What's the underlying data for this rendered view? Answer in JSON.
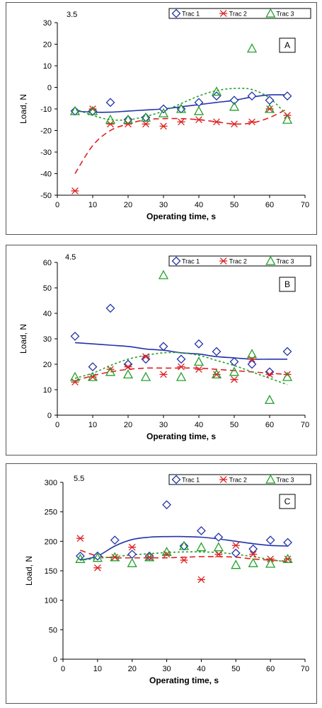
{
  "x_values": [
    5,
    10,
    15,
    20,
    25,
    30,
    35,
    40,
    45,
    50,
    55,
    60,
    65
  ],
  "colors": {
    "trac1": "#2233aa",
    "trac2": "#dd2222",
    "trac3": "#22a02a"
  },
  "chart_data": [
    {
      "type": "scatter",
      "id": "A",
      "speed_label": "3.5",
      "panel_label": "A",
      "xlabel": "Operating time, s",
      "ylabel": "Load, N",
      "xlim": [
        0,
        70
      ],
      "ylim": [
        -50,
        30
      ],
      "xticks": [
        0,
        10,
        20,
        30,
        40,
        50,
        60,
        70
      ],
      "yticks": [
        30,
        20,
        10,
        0,
        -10,
        -20,
        -30,
        -40,
        -50
      ],
      "legend_position": "top-right",
      "series": [
        {
          "name": "Trac 1",
          "marker": "diamond",
          "trend": "solid",
          "y": [
            -11,
            -11,
            -7,
            -15,
            -14,
            -10,
            -10,
            -7,
            -4,
            -6,
            -4,
            -6,
            -4
          ],
          "trend_y": [
            -11,
            -11.5,
            -11.5,
            -11,
            -10.5,
            -10,
            -9,
            -8,
            -7,
            -6,
            -4.5,
            -3.5,
            -3.5
          ]
        },
        {
          "name": "Trac 2",
          "marker": "asterisk",
          "trend": "dashed",
          "y": [
            -48,
            -10,
            -17,
            -17,
            -17,
            -18,
            -16,
            -15,
            -16,
            -17,
            -16,
            -10,
            -13
          ],
          "trend_y": [
            -40,
            -27,
            -20,
            -17,
            -15,
            -14.5,
            -14.5,
            -15,
            -16,
            -17,
            -16.5,
            -14,
            -10
          ]
        },
        {
          "name": "Trac 3",
          "marker": "triangle",
          "trend": "dotted",
          "y": [
            -11,
            -11,
            -15,
            -15,
            -14,
            -12,
            -10,
            -11,
            -2,
            -9,
            18,
            -10,
            -15
          ],
          "trend_y": [
            -10,
            -13,
            -15,
            -15,
            -13.5,
            -11,
            -7.5,
            -4,
            -1.5,
            -0.5,
            -1,
            -5,
            -13
          ]
        }
      ]
    },
    {
      "type": "scatter",
      "id": "B",
      "speed_label": "4.5",
      "panel_label": "B",
      "xlabel": "Operating time, s",
      "ylabel": "Load, N",
      "xlim": [
        0,
        70
      ],
      "ylim": [
        0,
        60
      ],
      "xticks": [
        0,
        10,
        20,
        30,
        40,
        50,
        60,
        70
      ],
      "yticks": [
        60,
        50,
        40,
        30,
        20,
        10,
        0
      ],
      "legend_position": "top-right",
      "series": [
        {
          "name": "Trac 1",
          "marker": "diamond",
          "trend": "solid",
          "y": [
            31,
            19,
            42,
            20,
            22,
            27,
            22,
            28,
            25,
            21,
            20,
            17,
            25
          ],
          "trend_y": [
            28.5,
            28,
            27.5,
            27,
            26,
            25.5,
            24.5,
            24,
            23,
            22.5,
            22,
            22,
            22
          ]
        },
        {
          "name": "Trac 2",
          "marker": "asterisk",
          "trend": "dashed",
          "y": [
            13,
            15,
            18,
            19,
            23,
            16,
            19,
            18,
            16,
            14,
            22,
            16,
            16
          ],
          "trend_y": [
            13.5,
            15.5,
            17,
            18,
            18.5,
            18.5,
            18.5,
            18.5,
            18,
            17.5,
            17,
            16.5,
            16
          ]
        },
        {
          "name": "Trac 3",
          "marker": "triangle",
          "trend": "dotted",
          "y": [
            15,
            15,
            17,
            16,
            15,
            55,
            15,
            21,
            16,
            17,
            24,
            6,
            15
          ],
          "trend_y": [
            14.5,
            16.5,
            19.5,
            22,
            23.5,
            24.5,
            24.5,
            23.5,
            21.5,
            19.5,
            17,
            14.5,
            12
          ]
        }
      ]
    },
    {
      "type": "scatter",
      "id": "C",
      "speed_label": "5.5",
      "panel_label": "C",
      "xlabel": "Operating time, s",
      "ylabel": "Load, N",
      "xlim": [
        0,
        70
      ],
      "ylim": [
        0,
        300
      ],
      "xticks": [
        0,
        10,
        20,
        30,
        40,
        50,
        60,
        70
      ],
      "yticks": [
        300,
        250,
        200,
        150,
        100,
        50,
        0
      ],
      "legend_position": "top-right",
      "series": [
        {
          "name": "Trac 1",
          "marker": "diamond",
          "trend": "solid",
          "y": [
            175,
            175,
            202,
            178,
            175,
            262,
            192,
            218,
            207,
            180,
            187,
            202,
            198
          ],
          "trend_y": [
            168,
            175,
            192,
            203,
            207,
            208,
            208,
            207,
            204,
            200,
            196,
            193,
            192
          ]
        },
        {
          "name": "Trac 2",
          "marker": "asterisk",
          "trend": "dashed",
          "y": [
            205,
            155,
            173,
            190,
            173,
            178,
            168,
            135,
            178,
            193,
            178,
            170,
            170
          ],
          "trend_y": [
            185,
            175,
            172,
            172,
            172,
            172,
            173,
            174,
            174,
            173,
            170,
            168,
            166
          ]
        },
        {
          "name": "Trac 3",
          "marker": "triangle",
          "trend": "dotted",
          "y": [
            170,
            172,
            173,
            163,
            173,
            182,
            192,
            190,
            190,
            160,
            163,
            162,
            170
          ],
          "trend_y": [
            168,
            171,
            174,
            177,
            179,
            181,
            182,
            182,
            181,
            178,
            174,
            169,
            165
          ]
        }
      ]
    }
  ]
}
